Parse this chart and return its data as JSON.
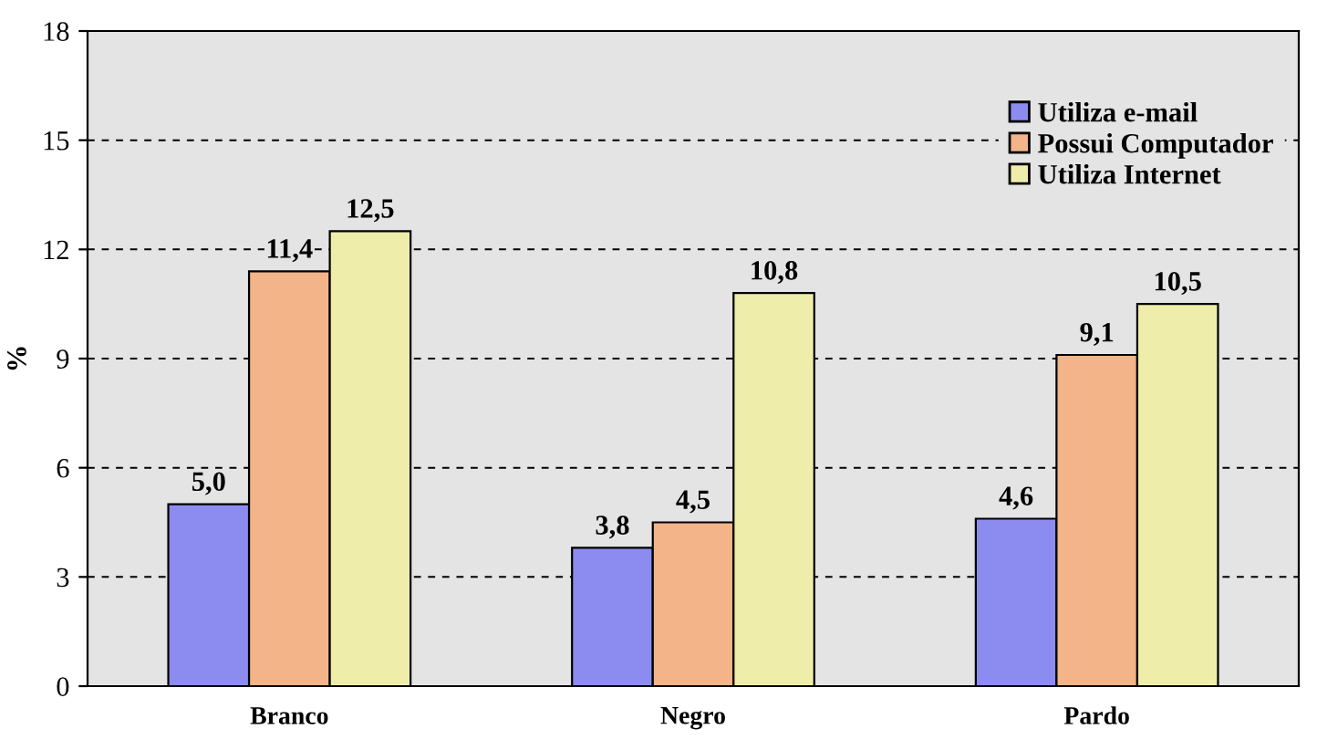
{
  "chart_data": {
    "type": "bar",
    "ylabel": "%",
    "categories": [
      "Branco",
      "Negro",
      "Pardo"
    ],
    "series": [
      {
        "name": "Utiliza e-mail",
        "color": "#8c8cf0",
        "values": [
          5.0,
          3.8,
          4.6
        ],
        "value_labels": [
          "5,0",
          "3,8",
          "4,6"
        ]
      },
      {
        "name": "Possui Computador",
        "color": "#f2b488",
        "values": [
          11.4,
          4.5,
          9.1
        ],
        "value_labels": [
          "11,4",
          "4,5",
          "9,1"
        ]
      },
      {
        "name": "Utiliza Internet",
        "color": "#eeeeaa",
        "values": [
          12.5,
          10.8,
          10.5
        ],
        "value_labels": [
          "12,5",
          "10,8",
          "10,5"
        ]
      }
    ],
    "ylim": [
      0,
      18
    ],
    "yticks": [
      0,
      3,
      6,
      9,
      12,
      15,
      18
    ],
    "grid": "y",
    "legend": "top right"
  }
}
